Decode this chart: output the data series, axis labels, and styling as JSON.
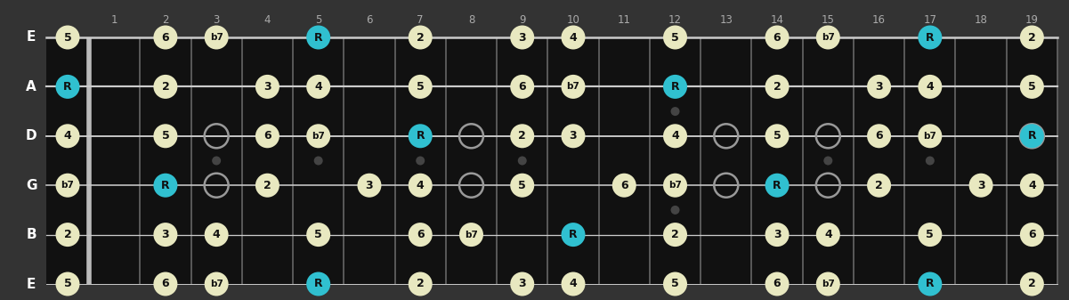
{
  "bg_color": "#333333",
  "fretboard_color": "#111111",
  "string_color": "#cccccc",
  "fret_color": "#666666",
  "nut_color": "#cccccc",
  "note_color_normal": "#e8e8c0",
  "note_color_root": "#30c0d0",
  "note_text_color": "#111111",
  "string_labels": [
    "E",
    "B",
    "G",
    "D",
    "A",
    "E"
  ],
  "fret_numbers": [
    1,
    2,
    3,
    4,
    5,
    6,
    7,
    8,
    9,
    10,
    11,
    12,
    13,
    14,
    15,
    16,
    17,
    18,
    19
  ],
  "fret_markers": [
    3,
    5,
    7,
    9,
    15,
    17
  ],
  "double_markers": [
    12
  ],
  "num_frets": 19,
  "num_strings": 6,
  "notes": [
    {
      "string": 0,
      "fret": 0,
      "label": "5",
      "root": false
    },
    {
      "string": 0,
      "fret": 2,
      "label": "6",
      "root": false
    },
    {
      "string": 0,
      "fret": 3,
      "label": "b7",
      "root": false
    },
    {
      "string": 0,
      "fret": 5,
      "label": "R",
      "root": true
    },
    {
      "string": 0,
      "fret": 7,
      "label": "2",
      "root": false
    },
    {
      "string": 0,
      "fret": 9,
      "label": "3",
      "root": false
    },
    {
      "string": 0,
      "fret": 10,
      "label": "4",
      "root": false
    },
    {
      "string": 0,
      "fret": 12,
      "label": "5",
      "root": false
    },
    {
      "string": 0,
      "fret": 14,
      "label": "6",
      "root": false
    },
    {
      "string": 0,
      "fret": 15,
      "label": "b7",
      "root": false
    },
    {
      "string": 0,
      "fret": 17,
      "label": "R",
      "root": true
    },
    {
      "string": 0,
      "fret": 19,
      "label": "2",
      "root": false
    },
    {
      "string": 1,
      "fret": 0,
      "label": "2",
      "root": false
    },
    {
      "string": 1,
      "fret": 2,
      "label": "3",
      "root": false
    },
    {
      "string": 1,
      "fret": 3,
      "label": "4",
      "root": false
    },
    {
      "string": 1,
      "fret": 5,
      "label": "5",
      "root": false
    },
    {
      "string": 1,
      "fret": 7,
      "label": "6",
      "root": false
    },
    {
      "string": 1,
      "fret": 8,
      "label": "b7",
      "root": false
    },
    {
      "string": 1,
      "fret": 10,
      "label": "R",
      "root": true
    },
    {
      "string": 1,
      "fret": 12,
      "label": "2",
      "root": false
    },
    {
      "string": 1,
      "fret": 14,
      "label": "3",
      "root": false
    },
    {
      "string": 1,
      "fret": 15,
      "label": "4",
      "root": false
    },
    {
      "string": 1,
      "fret": 17,
      "label": "5",
      "root": false
    },
    {
      "string": 1,
      "fret": 19,
      "label": "6",
      "root": false
    },
    {
      "string": 2,
      "fret": 0,
      "label": "b7",
      "root": false
    },
    {
      "string": 2,
      "fret": 2,
      "label": "R",
      "root": true
    },
    {
      "string": 2,
      "fret": 4,
      "label": "2",
      "root": false
    },
    {
      "string": 2,
      "fret": 6,
      "label": "3",
      "root": false
    },
    {
      "string": 2,
      "fret": 7,
      "label": "4",
      "root": false
    },
    {
      "string": 2,
      "fret": 9,
      "label": "5",
      "root": false
    },
    {
      "string": 2,
      "fret": 11,
      "label": "6",
      "root": false
    },
    {
      "string": 2,
      "fret": 12,
      "label": "b7",
      "root": false
    },
    {
      "string": 2,
      "fret": 14,
      "label": "R",
      "root": true
    },
    {
      "string": 2,
      "fret": 16,
      "label": "2",
      "root": false
    },
    {
      "string": 2,
      "fret": 18,
      "label": "3",
      "root": false
    },
    {
      "string": 2,
      "fret": 19,
      "label": "4",
      "root": false
    },
    {
      "string": 3,
      "fret": 0,
      "label": "4",
      "root": false
    },
    {
      "string": 3,
      "fret": 2,
      "label": "5",
      "root": false
    },
    {
      "string": 3,
      "fret": 4,
      "label": "6",
      "root": false
    },
    {
      "string": 3,
      "fret": 5,
      "label": "b7",
      "root": false
    },
    {
      "string": 3,
      "fret": 7,
      "label": "R",
      "root": true
    },
    {
      "string": 3,
      "fret": 9,
      "label": "2",
      "root": false
    },
    {
      "string": 3,
      "fret": 10,
      "label": "3",
      "root": false
    },
    {
      "string": 3,
      "fret": 12,
      "label": "4",
      "root": false
    },
    {
      "string": 3,
      "fret": 14,
      "label": "5",
      "root": false
    },
    {
      "string": 3,
      "fret": 16,
      "label": "6",
      "root": false
    },
    {
      "string": 3,
      "fret": 17,
      "label": "b7",
      "root": false
    },
    {
      "string": 3,
      "fret": 19,
      "label": "R",
      "root": true
    },
    {
      "string": 4,
      "fret": 0,
      "label": "R",
      "root": true
    },
    {
      "string": 4,
      "fret": 2,
      "label": "2",
      "root": false
    },
    {
      "string": 4,
      "fret": 4,
      "label": "3",
      "root": false
    },
    {
      "string": 4,
      "fret": 5,
      "label": "4",
      "root": false
    },
    {
      "string": 4,
      "fret": 7,
      "label": "5",
      "root": false
    },
    {
      "string": 4,
      "fret": 9,
      "label": "6",
      "root": false
    },
    {
      "string": 4,
      "fret": 10,
      "label": "b7",
      "root": false
    },
    {
      "string": 4,
      "fret": 12,
      "label": "R",
      "root": true
    },
    {
      "string": 4,
      "fret": 14,
      "label": "2",
      "root": false
    },
    {
      "string": 4,
      "fret": 16,
      "label": "3",
      "root": false
    },
    {
      "string": 4,
      "fret": 17,
      "label": "4",
      "root": false
    },
    {
      "string": 4,
      "fret": 19,
      "label": "5",
      "root": false
    },
    {
      "string": 5,
      "fret": 0,
      "label": "5",
      "root": false
    },
    {
      "string": 5,
      "fret": 2,
      "label": "6",
      "root": false
    },
    {
      "string": 5,
      "fret": 3,
      "label": "b7",
      "root": false
    },
    {
      "string": 5,
      "fret": 5,
      "label": "R",
      "root": true
    },
    {
      "string": 5,
      "fret": 7,
      "label": "2",
      "root": false
    },
    {
      "string": 5,
      "fret": 9,
      "label": "3",
      "root": false
    },
    {
      "string": 5,
      "fret": 10,
      "label": "4",
      "root": false
    },
    {
      "string": 5,
      "fret": 12,
      "label": "5",
      "root": false
    },
    {
      "string": 5,
      "fret": 14,
      "label": "6",
      "root": false
    },
    {
      "string": 5,
      "fret": 15,
      "label": "b7",
      "root": false
    },
    {
      "string": 5,
      "fret": 17,
      "label": "R",
      "root": true
    },
    {
      "string": 5,
      "fret": 19,
      "label": "2",
      "root": false
    }
  ],
  "open_circles": [
    {
      "string": 2,
      "fret": 3
    },
    {
      "string": 3,
      "fret": 3
    },
    {
      "string": 2,
      "fret": 8
    },
    {
      "string": 3,
      "fret": 8
    },
    {
      "string": 2,
      "fret": 13
    },
    {
      "string": 3,
      "fret": 13
    },
    {
      "string": 2,
      "fret": 15
    },
    {
      "string": 3,
      "fret": 15
    },
    {
      "string": 3,
      "fret": 19
    }
  ]
}
